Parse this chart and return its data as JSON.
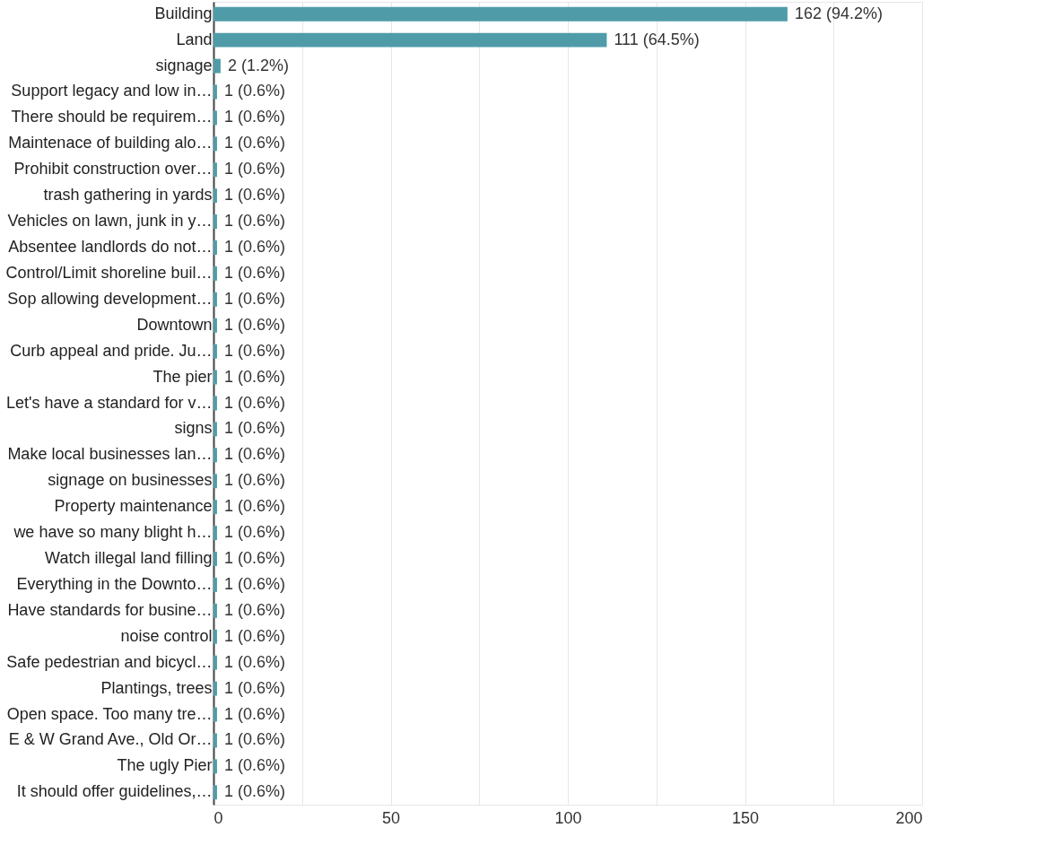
{
  "chart_data": {
    "type": "bar",
    "orientation": "horizontal",
    "categories": [
      "Building",
      "Land",
      "signage",
      "Support legacy and low in…",
      "There should be requirem…",
      "Maintenace of building alo…",
      "Prohibit construction over…",
      "trash gathering in yards",
      "Vehicles on lawn, junk in y…",
      "Absentee landlords do not…",
      "Control/Limit shoreline buil…",
      "Sop allowing development…",
      "Downtown",
      "Curb appeal and pride. Ju…",
      "The pier",
      "Let's have a standard for v…",
      "signs",
      "Make local businesses lan…",
      "signage on businesses",
      "Property maintenance",
      "we have so many blight h…",
      "Watch illegal land filling",
      "Everything in the Downto…",
      "Have standards for busine…",
      "noise control",
      "Safe pedestrian and bicycl…",
      "Plantings, trees",
      "Open space. Too many tre…",
      "E & W Grand Ave., Old Or…",
      "The ugly Pier",
      "It should offer guidelines,…"
    ],
    "values": [
      162,
      111,
      2,
      1,
      1,
      1,
      1,
      1,
      1,
      1,
      1,
      1,
      1,
      1,
      1,
      1,
      1,
      1,
      1,
      1,
      1,
      1,
      1,
      1,
      1,
      1,
      1,
      1,
      1,
      1,
      1
    ],
    "value_labels": [
      "162 (94.2%)",
      "111 (64.5%)",
      "2 (1.2%)",
      "1 (0.6%)",
      "1 (0.6%)",
      "1 (0.6%)",
      "1 (0.6%)",
      "1 (0.6%)",
      "1 (0.6%)",
      "1 (0.6%)",
      "1 (0.6%)",
      "1 (0.6%)",
      "1 (0.6%)",
      "1 (0.6%)",
      "1 (0.6%)",
      "1 (0.6%)",
      "1 (0.6%)",
      "1 (0.6%)",
      "1 (0.6%)",
      "1 (0.6%)",
      "1 (0.6%)",
      "1 (0.6%)",
      "1 (0.6%)",
      "1 (0.6%)",
      "1 (0.6%)",
      "1 (0.6%)",
      "1 (0.6%)",
      "1 (0.6%)",
      "1 (0.6%)",
      "1 (0.6%)",
      "1 (0.6%)"
    ],
    "color": "#4f9ca8",
    "xlim": [
      0,
      200
    ],
    "xticks": [
      0,
      {
        "value": 25,
        "label": null
      },
      50,
      {
        "value": 75,
        "label": null
      },
      100,
      {
        "value": 125,
        "label": null
      },
      150,
      {
        "value": 175,
        "label": null
      },
      200
    ],
    "grid": true
  }
}
